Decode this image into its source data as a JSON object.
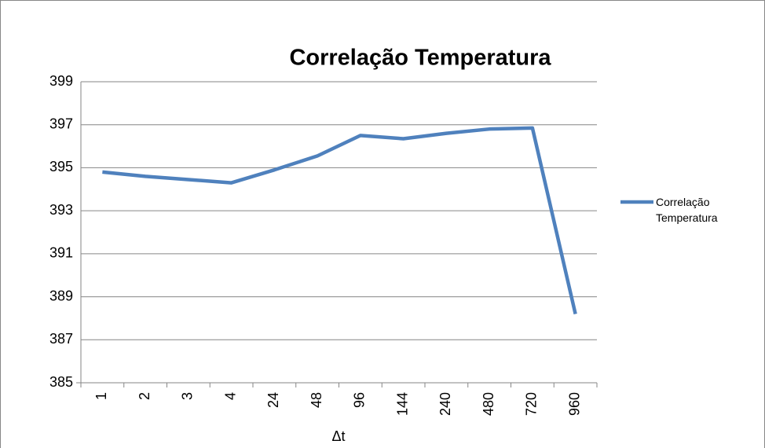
{
  "chart_data": {
    "type": "line",
    "title": "Correlação Temperatura",
    "x_label": "Δt",
    "categories": [
      "1",
      "2",
      "3",
      "4",
      "24",
      "48",
      "96",
      "144",
      "240",
      "480",
      "720",
      "960"
    ],
    "series": [
      {
        "name": "Correlação Temperatura",
        "color": "#4f81bd",
        "values": [
          394.8,
          394.6,
          394.45,
          394.3,
          394.9,
          395.55,
          396.5,
          396.35,
          396.6,
          396.8,
          396.85,
          388.2
        ]
      }
    ],
    "ylim": [
      385,
      399
    ],
    "yticks": [
      385,
      387,
      389,
      391,
      393,
      395,
      397,
      399
    ],
    "grid": true,
    "legend": "right"
  }
}
